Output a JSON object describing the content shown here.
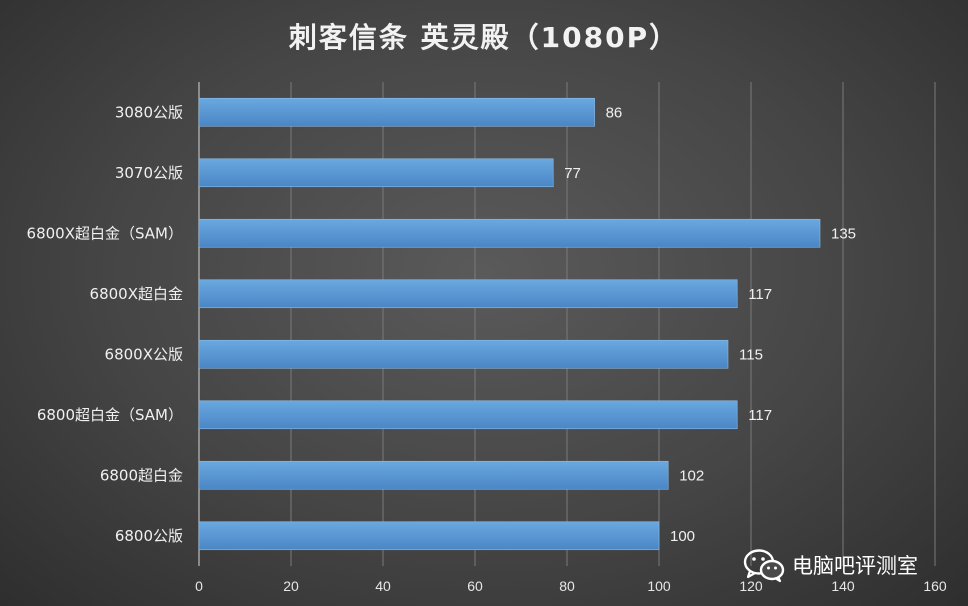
{
  "chart_data": {
    "type": "bar",
    "orientation": "horizontal",
    "title": "刺客信条 英灵殿（1080P）",
    "categories": [
      "3080公版",
      "3070公版",
      "6800X超白金（SAM）",
      "6800X超白金",
      "6800X公版",
      "6800超白金（SAM）",
      "6800超白金",
      "6800公版"
    ],
    "values": [
      86,
      77,
      135,
      117,
      115,
      117,
      102,
      100
    ],
    "xlim": [
      0,
      160
    ],
    "xticks": [
      0,
      20,
      40,
      60,
      80,
      100,
      120,
      140,
      160
    ],
    "grid": "vertical",
    "bar_color": "#5b9bd5",
    "data_labels": true
  },
  "watermark": {
    "text": "电脑吧评测室",
    "icon": "wechat-icon"
  }
}
